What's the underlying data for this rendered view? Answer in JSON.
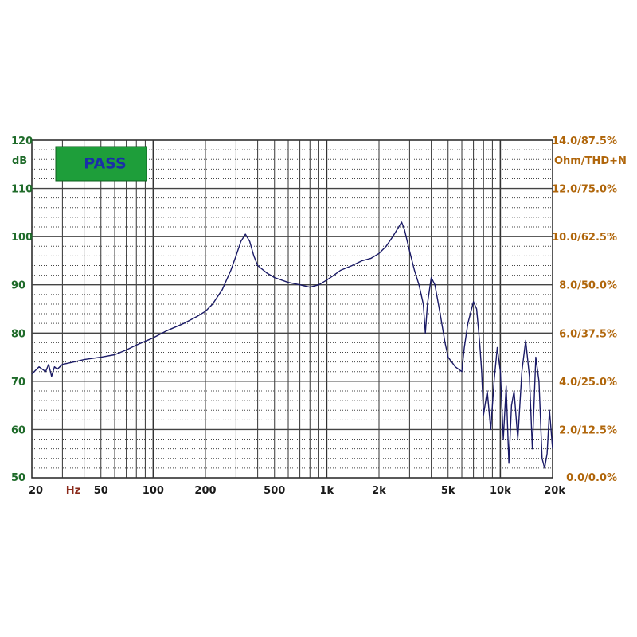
{
  "chart_data": {
    "type": "line",
    "x_scale": "log",
    "xlim": [
      20,
      20000
    ],
    "ylim": [
      50,
      120
    ],
    "grid": true,
    "badge": "PASS",
    "left_axis": {
      "unit": "dB",
      "ticks": [
        "120",
        "110",
        "100",
        "90",
        "80",
        "70",
        "60",
        "50"
      ]
    },
    "right_axis": {
      "unit": "Ohm/THD+N",
      "ticks": [
        "14.0/87.5%",
        "12.0/75.0%",
        "10.0/62.5%",
        "8.0/50.0%",
        "6.0/37.5%",
        "4.0/25.0%",
        "2.0/12.5%",
        "0.0/0.0%"
      ]
    },
    "x_axis": {
      "unit": "Hz",
      "ticks": [
        {
          "label": "20",
          "value": 20
        },
        {
          "label": "50",
          "value": 50
        },
        {
          "label": "100",
          "value": 100
        },
        {
          "label": "200",
          "value": 200
        },
        {
          "label": "500",
          "value": 500
        },
        {
          "label": "1k",
          "value": 1000
        },
        {
          "label": "2k",
          "value": 2000
        },
        {
          "label": "5k",
          "value": 5000
        },
        {
          "label": "10k",
          "value": 10000
        },
        {
          "label": "20k",
          "value": 20000
        }
      ]
    },
    "series": [
      {
        "color": "#1a1a66",
        "points": [
          [
            20,
            71.5
          ],
          [
            22,
            73
          ],
          [
            24,
            72
          ],
          [
            25,
            73.5
          ],
          [
            26,
            71
          ],
          [
            27,
            73
          ],
          [
            28,
            72.5
          ],
          [
            30,
            73.5
          ],
          [
            35,
            74
          ],
          [
            40,
            74.5
          ],
          [
            50,
            75
          ],
          [
            60,
            75.5
          ],
          [
            70,
            76.5
          ],
          [
            80,
            77.5
          ],
          [
            100,
            79
          ],
          [
            120,
            80.5
          ],
          [
            150,
            82
          ],
          [
            180,
            83.5
          ],
          [
            200,
            84.5
          ],
          [
            220,
            86
          ],
          [
            250,
            89
          ],
          [
            280,
            93
          ],
          [
            300,
            96
          ],
          [
            320,
            99
          ],
          [
            340,
            100.5
          ],
          [
            360,
            99
          ],
          [
            380,
            96
          ],
          [
            400,
            94
          ],
          [
            450,
            92.5
          ],
          [
            500,
            91.5
          ],
          [
            600,
            90.5
          ],
          [
            700,
            90
          ],
          [
            800,
            89.5
          ],
          [
            900,
            90
          ],
          [
            1000,
            91
          ],
          [
            1100,
            92
          ],
          [
            1200,
            93
          ],
          [
            1400,
            94
          ],
          [
            1600,
            95
          ],
          [
            1800,
            95.5
          ],
          [
            2000,
            96.5
          ],
          [
            2200,
            98
          ],
          [
            2400,
            100
          ],
          [
            2600,
            102
          ],
          [
            2700,
            103
          ],
          [
            2800,
            101.5
          ],
          [
            3000,
            97
          ],
          [
            3200,
            93
          ],
          [
            3400,
            90
          ],
          [
            3600,
            86
          ],
          [
            3700,
            80
          ],
          [
            3800,
            86
          ],
          [
            4000,
            91.5
          ],
          [
            4200,
            90
          ],
          [
            4500,
            84
          ],
          [
            4800,
            78
          ],
          [
            5000,
            75
          ],
          [
            5500,
            73
          ],
          [
            6000,
            72
          ],
          [
            6200,
            77
          ],
          [
            6500,
            82
          ],
          [
            7000,
            86.5
          ],
          [
            7300,
            85
          ],
          [
            7600,
            78
          ],
          [
            7800,
            72
          ],
          [
            8000,
            63
          ],
          [
            8400,
            68
          ],
          [
            8800,
            60
          ],
          [
            9200,
            70
          ],
          [
            9600,
            77
          ],
          [
            10000,
            72
          ],
          [
            10400,
            58
          ],
          [
            10800,
            69
          ],
          [
            11200,
            53
          ],
          [
            11600,
            65
          ],
          [
            12000,
            68
          ],
          [
            12600,
            58
          ],
          [
            13300,
            72
          ],
          [
            14000,
            78.5
          ],
          [
            14700,
            71
          ],
          [
            15300,
            56
          ],
          [
            16000,
            75
          ],
          [
            16700,
            70
          ],
          [
            17400,
            54
          ],
          [
            18000,
            52
          ],
          [
            18600,
            55
          ],
          [
            19200,
            64
          ],
          [
            20000,
            56
          ]
        ]
      }
    ]
  }
}
